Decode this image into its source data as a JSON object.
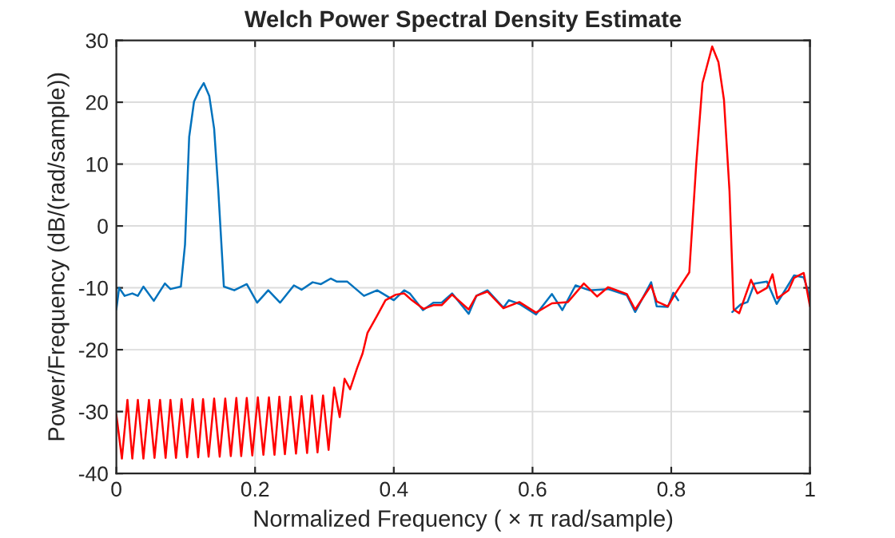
{
  "chart_data": {
    "type": "line",
    "title": "Welch Power Spectral Density Estimate",
    "xlabel": "Normalized Frequency ( × π rad/sample)",
    "ylabel": "Power/Frequency (dB/(rad/sample))",
    "xlim": [
      0,
      1
    ],
    "ylim": [
      -40,
      30
    ],
    "xticks": [
      0,
      0.2,
      0.4,
      0.6,
      0.8,
      1
    ],
    "yticks": [
      -40,
      -30,
      -20,
      -10,
      0,
      10,
      20,
      30
    ],
    "grid": true,
    "line_style": "solid",
    "marker": "none",
    "series": [
      {
        "color": "#0072bd",
        "x": [
          0,
          0.004,
          0.012,
          0.023,
          0.031,
          0.039,
          0.054,
          0.07,
          0.078,
          0.093,
          0.099,
          0.105,
          0.112,
          0.119,
          0.126,
          0.134,
          0.141,
          0.147,
          0.155,
          0.17,
          0.188,
          0.203,
          0.219,
          0.236,
          0.256,
          0.267,
          0.283,
          0.295,
          0.309,
          0.318,
          0.333,
          0.357,
          0.376,
          0.4,
          0.415,
          0.423,
          0.442,
          0.457,
          0.469,
          0.484,
          0.508,
          0.519,
          0.535,
          0.558,
          0.566,
          0.581,
          0.605,
          0.628,
          0.643,
          0.662,
          0.682,
          0.709,
          0.736,
          0.748,
          0.771,
          0.779,
          0.795,
          0.803,
          0.81,
          0.826,
          0.855,
          0.888,
          0.9,
          0.91,
          0.92,
          0.938,
          0.952,
          0.977,
          0.991,
          1.0
        ],
        "values": [
          -13.5,
          -10.0,
          -11.3,
          -10.9,
          -11.3,
          -9.8,
          -12.1,
          -9.3,
          -10.2,
          -9.8,
          -3.0,
          14.4,
          20.1,
          21.8,
          23.1,
          21.0,
          15.7,
          5.7,
          -9.8,
          -10.4,
          -9.4,
          -12.4,
          -10.4,
          -12.4,
          -9.6,
          -10.3,
          -9.1,
          -9.4,
          -8.5,
          -9.0,
          -9.0,
          -11.3,
          -10.4,
          -12.0,
          -10.4,
          -10.9,
          -13.6,
          -12.4,
          -12.4,
          -10.9,
          -14.2,
          -11.3,
          -10.4,
          -13.2,
          -12.0,
          -12.6,
          -14.3,
          -11.0,
          -13.6,
          -9.6,
          -10.4,
          -10.2,
          -11.2,
          -13.9,
          -9.1,
          -13.0,
          -13.1,
          -10.8,
          -12.0,
          null,
          null,
          -13.9,
          -12.7,
          -12.3,
          -9.3,
          -9.0,
          -12.6,
          -8.0,
          -8.3,
          -11.5
        ]
      },
      {
        "color": "#ff0000",
        "x": [
          0,
          0.008,
          0.016,
          0.023,
          0.031,
          0.039,
          0.047,
          0.055,
          0.063,
          0.071,
          0.078,
          0.086,
          0.094,
          0.102,
          0.11,
          0.118,
          0.125,
          0.133,
          0.141,
          0.149,
          0.157,
          0.165,
          0.173,
          0.18,
          0.188,
          0.196,
          0.204,
          0.212,
          0.22,
          0.228,
          0.235,
          0.243,
          0.251,
          0.259,
          0.267,
          0.275,
          0.282,
          0.29,
          0.298,
          0.306,
          0.314,
          0.322,
          0.329,
          0.337,
          0.347,
          0.355,
          0.362,
          0.376,
          0.388,
          0.403,
          0.415,
          0.426,
          0.443,
          0.457,
          0.469,
          0.484,
          0.508,
          0.519,
          0.535,
          0.558,
          0.581,
          0.605,
          0.628,
          0.651,
          0.674,
          0.693,
          0.709,
          0.736,
          0.748,
          0.771,
          0.779,
          0.795,
          0.806,
          0.826,
          0.836,
          0.845,
          0.859,
          0.868,
          0.876,
          0.884,
          0.89,
          0.898,
          0.915,
          0.924,
          0.938,
          0.946,
          0.953,
          0.969,
          0.977,
          0.991,
          1.0
        ],
        "values": [
          -30.5,
          -37.6,
          -28.1,
          -37.6,
          -28.1,
          -37.6,
          -28.1,
          -37.5,
          -28.1,
          -37.5,
          -28.1,
          -37.5,
          -28.0,
          -37.4,
          -28.0,
          -37.4,
          -28.0,
          -37.3,
          -27.9,
          -37.3,
          -27.9,
          -37.2,
          -27.8,
          -37.2,
          -27.8,
          -37.1,
          -27.7,
          -37.0,
          -27.7,
          -37.0,
          -27.6,
          -36.9,
          -27.6,
          -36.8,
          -27.5,
          -36.7,
          -27.4,
          -36.6,
          -27.4,
          -36.2,
          -26.1,
          -30.9,
          -24.7,
          -26.4,
          -23.0,
          -20.6,
          -17.3,
          -14.5,
          -12.0,
          -11.1,
          -10.9,
          -12.0,
          -13.4,
          -12.8,
          -12.8,
          -11.1,
          -13.5,
          -11.3,
          -10.6,
          -13.3,
          -12.3,
          -14.0,
          -12.5,
          -12.3,
          -9.3,
          -11.4,
          -9.9,
          -11.0,
          -13.5,
          -9.6,
          -12.2,
          -13.0,
          -10.9,
          -7.5,
          10.0,
          23.1,
          29.0,
          26.5,
          20.4,
          5.6,
          -13.5,
          -14.1,
          -8.7,
          -10.9,
          -10.0,
          -7.8,
          -11.7,
          -10.4,
          -8.4,
          -7.6,
          -13.0
        ]
      }
    ]
  }
}
